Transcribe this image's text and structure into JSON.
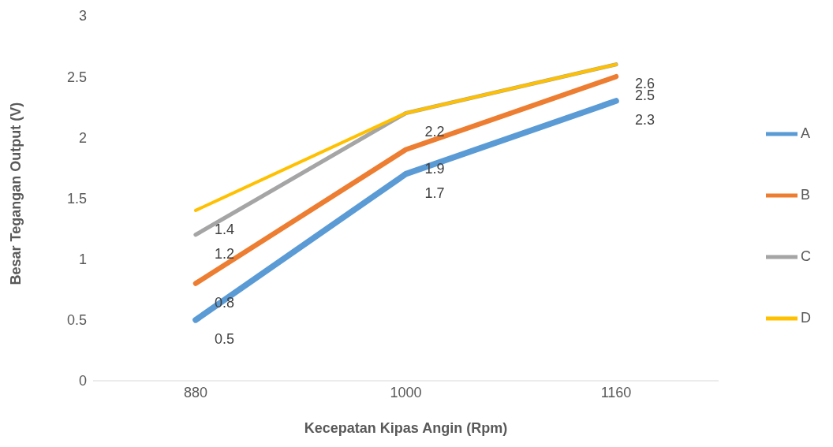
{
  "chart_data": {
    "type": "line",
    "xlabel": "Kecepatan Kipas Angin (Rpm)",
    "ylabel": "Besar Tegangan Output (V)",
    "categories": [
      "880",
      "1000",
      "1160"
    ],
    "series": [
      {
        "name": "A",
        "color": "#5b9bd5",
        "values": [
          0.5,
          1.7,
          2.3
        ],
        "value_labels": [
          "0.5",
          "1.7",
          "2.3"
        ]
      },
      {
        "name": "B",
        "color": "#ed7d31",
        "values": [
          0.8,
          1.9,
          2.5
        ],
        "value_labels": [
          "0.8",
          "1.9",
          "2.5"
        ]
      },
      {
        "name": "C",
        "color": "#a5a5a5",
        "values": [
          1.2,
          2.2,
          2.6
        ],
        "value_labels": [
          "1.2",
          null,
          null
        ]
      },
      {
        "name": "D",
        "color": "#ffc000",
        "values": [
          1.4,
          2.2,
          2.6
        ],
        "value_labels": [
          "1.4",
          "2.2",
          "2.6"
        ]
      }
    ],
    "ylim": [
      0,
      3
    ],
    "yticks": [
      0,
      0.5,
      1,
      1.5,
      2,
      2.5,
      3
    ],
    "grid": false,
    "legend": "right",
    "marker": "none",
    "line_style": "solid"
  }
}
